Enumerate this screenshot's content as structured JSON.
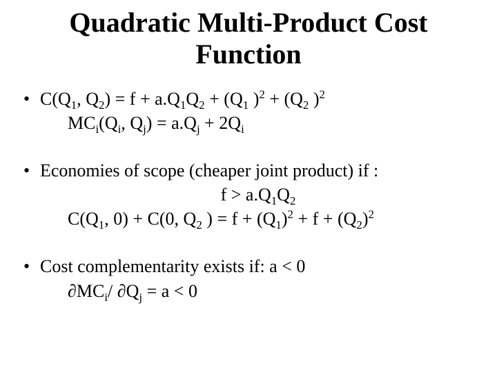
{
  "title": "Quadratic Multi-Product Cost Function",
  "b1_line1_a": "C(Q",
  "b1_line1_b": ", Q",
  "b1_line1_c": ") = f + a.Q",
  "b1_line1_d": "Q",
  "b1_line1_e": " + (Q",
  "b1_line1_f": " )",
  "b1_line1_g": " + (Q",
  "b1_line1_h": " )",
  "b1_line2_a": "MC",
  "b1_line2_b": "(Q",
  "b1_line2_c": ", Q",
  "b1_line2_d": ") = a.Q",
  "b1_line2_e": " + 2Q",
  "b2_line1": "Economies of scope (cheaper joint product) if :",
  "b2_line2_a": "f  > a.Q",
  "b2_line2_b": "Q",
  "b2_line3_a": "C(Q",
  "b2_line3_b": ", 0) + C(0, Q",
  "b2_line3_c": " ) = f + (Q",
  "b2_line3_d": ")",
  "b2_line3_e": " + f + (Q",
  "b2_line3_f": ")",
  "b3_line1": "Cost complementarity exists if: a < 0",
  "b3_line2_a": "∂MC",
  "b3_line2_b": "/ ∂Q",
  "b3_line2_c": " = a < 0",
  "s1": "1",
  "s2": "2",
  "si": "i",
  "sj": "j",
  "p2": "2"
}
